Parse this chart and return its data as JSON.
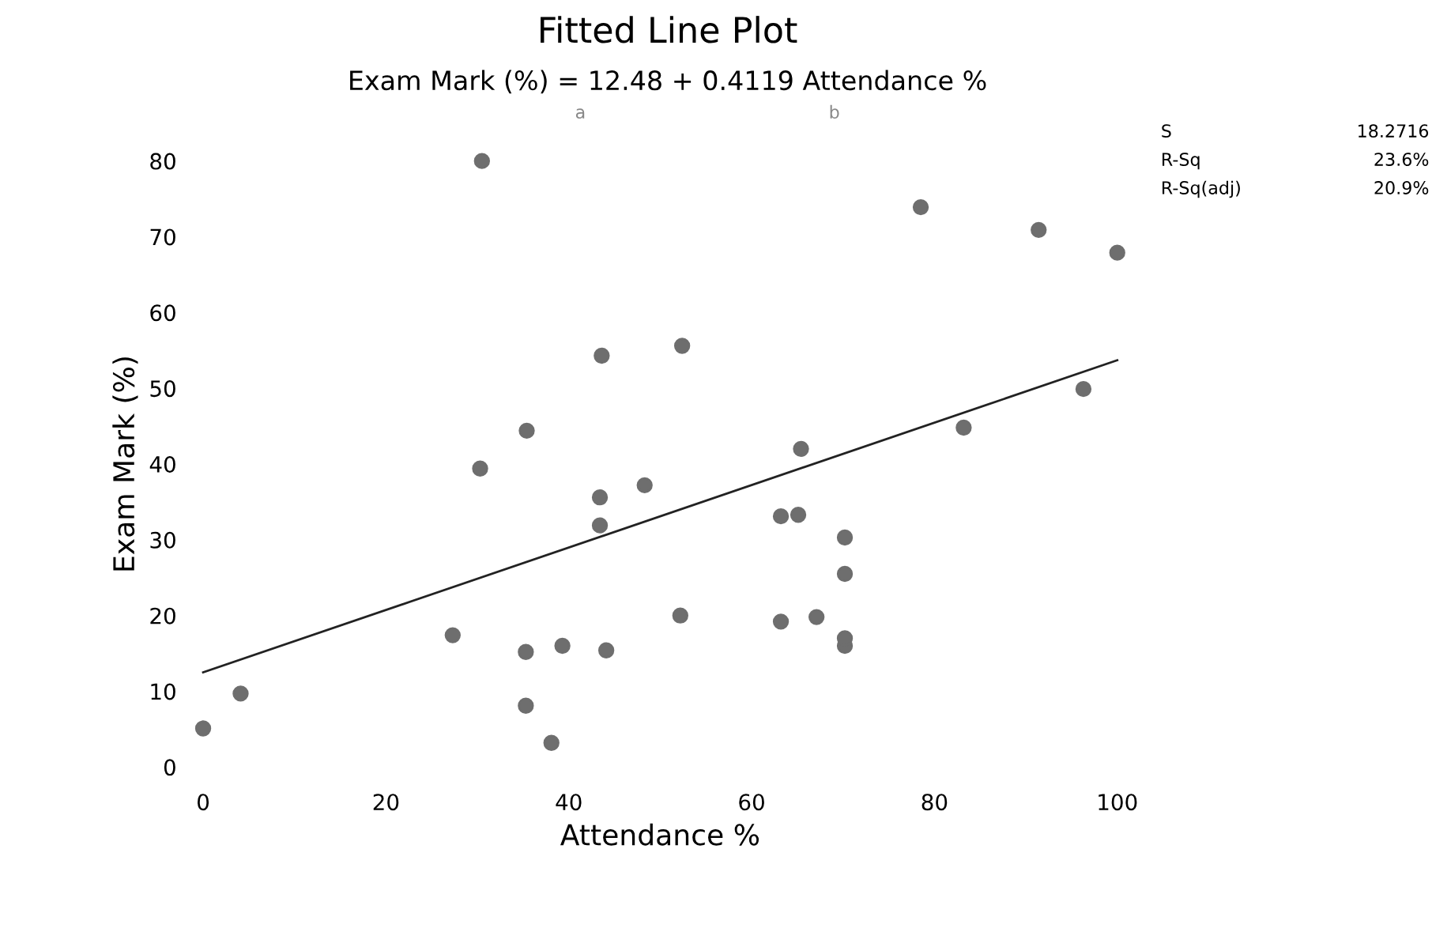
{
  "chart_data": {
    "type": "scatter",
    "title": "Fitted Line Plot",
    "subtitle": "Exam Mark (%) = 12.48 + 0.4119 Attendance %",
    "xlabel": "Attendance %",
    "ylabel": "Exam Mark (%)",
    "series": [
      {
        "color": "#6e6e6e",
        "marker": "circle",
        "x": [
          30.5,
          43.6,
          52.4,
          35.4,
          30.3,
          48.3,
          43.4,
          43.4,
          65.4,
          63.2,
          65.1,
          52.2,
          63.2,
          27.3,
          35.3,
          39.3,
          44.1,
          35.3,
          38.1,
          4.1,
          0,
          78.5,
          91.4,
          100,
          96.3,
          83.2,
          70.2,
          70.2,
          67.1,
          70.2,
          70.2
        ],
        "values": [
          80,
          54.3,
          55.6,
          44.4,
          39.4,
          37.2,
          35.6,
          31.9,
          42.0,
          33.1,
          33.3,
          20.0,
          19.2,
          17.4,
          15.2,
          16.0,
          15.4,
          8.1,
          3.2,
          9.7,
          5.1,
          73.9,
          70.9,
          67.9,
          49.9,
          44.8,
          30.3,
          25.5,
          19.8,
          16.0,
          17.0
        ]
      },
      {
        "type": "line",
        "marker": "none",
        "color": "#222222",
        "x": [
          0,
          100
        ],
        "values": [
          12.5,
          53.7
        ]
      }
    ],
    "xlim": [
      0,
      100
    ],
    "ylim": [
      0,
      80
    ],
    "xticks": [
      0,
      20,
      40,
      60,
      80,
      100
    ],
    "yticks": [
      0,
      10,
      20,
      30,
      40,
      50,
      60,
      70,
      80
    ],
    "annotations": [
      "a",
      "b",
      "S",
      "18.2716",
      "R-Sq",
      "23.6%",
      "R-Sq(adj)",
      "20.9%"
    ]
  }
}
